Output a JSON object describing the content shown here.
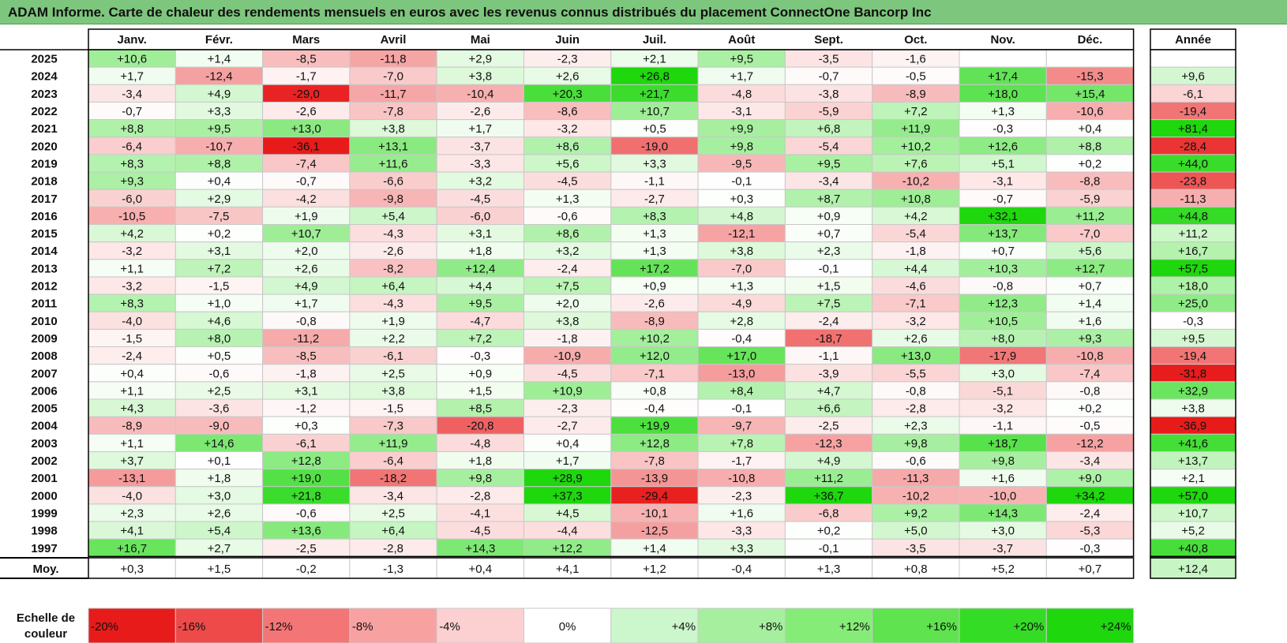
{
  "title": "ADAM Informe. Carte de chaleur des rendements mensuels en euros avec les revenus connus distribués du placement ConnectOne Bancorp Inc",
  "chart_data": {
    "type": "heatmap",
    "months": [
      "Janv.",
      "Févr.",
      "Mars",
      "Avril",
      "Mai",
      "Juin",
      "Juil.",
      "Août",
      "Sept.",
      "Oct.",
      "Nov.",
      "Déc."
    ],
    "year_column_label": "Année",
    "years": [
      "2025",
      "2024",
      "2023",
      "2022",
      "2021",
      "2020",
      "2019",
      "2018",
      "2017",
      "2016",
      "2015",
      "2014",
      "2013",
      "2012",
      "2011",
      "2010",
      "2009",
      "2008",
      "2007",
      "2006",
      "2005",
      "2004",
      "2003",
      "2002",
      "2001",
      "2000",
      "1999",
      "1998",
      "1997"
    ],
    "values": [
      [
        "+10,6",
        "+1,4",
        "-8,5",
        "-11,8",
        "+2,9",
        "-2,3",
        "+2,1",
        "+9,5",
        "-3,5",
        "-1,6",
        "",
        ""
      ],
      [
        "+1,7",
        "-12,4",
        "-1,7",
        "-7,0",
        "+3,8",
        "+2,6",
        "+26,8",
        "+1,7",
        "-0,7",
        "-0,5",
        "+17,4",
        "-15,3"
      ],
      [
        "-3,4",
        "+4,9",
        "-29,0",
        "-11,7",
        "-10,4",
        "+20,3",
        "+21,7",
        "-4,8",
        "-3,8",
        "-8,9",
        "+18,0",
        "+15,4"
      ],
      [
        "-0,7",
        "+3,3",
        "-2,6",
        "-7,8",
        "-2,6",
        "-8,6",
        "+10,7",
        "-3,1",
        "-5,9",
        "+7,2",
        "+1,3",
        "-10,6"
      ],
      [
        "+8,8",
        "+9,5",
        "+13,0",
        "+3,8",
        "+1,7",
        "-3,2",
        "+0,5",
        "+9,9",
        "+6,8",
        "+11,9",
        "-0,3",
        "+0,4"
      ],
      [
        "-6,4",
        "-10,7",
        "-36,1",
        "+13,1",
        "-3,7",
        "+8,6",
        "-19,0",
        "+9,8",
        "-5,4",
        "+10,2",
        "+12,6",
        "+8,8"
      ],
      [
        "+8,3",
        "+8,8",
        "-7,4",
        "+11,6",
        "-3,3",
        "+5,6",
        "+3,3",
        "-9,5",
        "+9,5",
        "+7,6",
        "+5,1",
        "+0,2"
      ],
      [
        "+9,3",
        "+0,4",
        "-0,7",
        "-6,6",
        "+3,2",
        "-4,5",
        "-1,1",
        "-0,1",
        "-3,4",
        "-10,2",
        "-3,1",
        "-8,8"
      ],
      [
        "-6,0",
        "+2,9",
        "-4,2",
        "-9,8",
        "-4,5",
        "+1,3",
        "-2,7",
        "+0,3",
        "+8,7",
        "+10,8",
        "-0,7",
        "-5,9"
      ],
      [
        "-10,5",
        "-7,5",
        "+1,9",
        "+5,4",
        "-6,0",
        "-0,6",
        "+8,3",
        "+4,8",
        "+0,9",
        "+4,2",
        "+32,1",
        "+11,2"
      ],
      [
        "+4,2",
        "+0,2",
        "+10,7",
        "-4,3",
        "+3,1",
        "+8,6",
        "+1,3",
        "-12,1",
        "+0,7",
        "-5,4",
        "+13,7",
        "-7,0"
      ],
      [
        "-3,2",
        "+3,1",
        "+2,0",
        "-2,6",
        "+1,8",
        "+3,2",
        "+1,3",
        "+3,8",
        "+2,3",
        "-1,8",
        "+0,7",
        "+5,6"
      ],
      [
        "+1,1",
        "+7,2",
        "+2,6",
        "-8,2",
        "+12,4",
        "-2,4",
        "+17,2",
        "-7,0",
        "-0,1",
        "+4,4",
        "+10,3",
        "+12,7"
      ],
      [
        "-3,2",
        "-1,5",
        "+4,9",
        "+6,4",
        "+4,4",
        "+7,5",
        "+0,9",
        "+1,3",
        "+1,5",
        "-4,6",
        "-0,8",
        "+0,7"
      ],
      [
        "+8,3",
        "+1,0",
        "+1,7",
        "-4,3",
        "+9,5",
        "+2,0",
        "-2,6",
        "-4,9",
        "+7,5",
        "-7,1",
        "+12,3",
        "+1,4"
      ],
      [
        "-4,0",
        "+4,6",
        "-0,8",
        "+1,9",
        "-4,7",
        "+3,8",
        "-8,9",
        "+2,8",
        "-2,4",
        "-3,2",
        "+10,5",
        "+1,6"
      ],
      [
        "-1,5",
        "+8,0",
        "-11,2",
        "+2,2",
        "+7,2",
        "-1,8",
        "+10,2",
        "-0,4",
        "-18,7",
        "+2,6",
        "+8,0",
        "+9,3"
      ],
      [
        "-2,4",
        "+0,5",
        "-8,5",
        "-6,1",
        "-0,3",
        "-10,9",
        "+12,0",
        "+17,0",
        "-1,1",
        "+13,0",
        "-17,9",
        "-10,8"
      ],
      [
        "+0,4",
        "-0,6",
        "-1,8",
        "+2,5",
        "+0,9",
        "-4,5",
        "-7,1",
        "-13,0",
        "-3,9",
        "-5,5",
        "+3,0",
        "-7,4"
      ],
      [
        "+1,1",
        "+2,5",
        "+3,1",
        "+3,8",
        "+1,5",
        "+10,9",
        "+0,8",
        "+8,4",
        "+4,7",
        "-0,8",
        "-5,1",
        "-0,8"
      ],
      [
        "+4,3",
        "-3,6",
        "-1,2",
        "-1,5",
        "+8,5",
        "-2,3",
        "-0,4",
        "-0,1",
        "+6,6",
        "-2,8",
        "-3,2",
        "+0,2"
      ],
      [
        "-8,9",
        "-9,0",
        "+0,3",
        "-7,3",
        "-20,8",
        "-2,7",
        "+19,9",
        "-9,7",
        "-2,5",
        "+2,3",
        "-1,1",
        "-0,5"
      ],
      [
        "+1,1",
        "+14,6",
        "-6,1",
        "+11,9",
        "-4,8",
        "+0,4",
        "+12,8",
        "+7,8",
        "-12,3",
        "+9,8",
        "+18,7",
        "-12,2"
      ],
      [
        "+3,7",
        "+0,1",
        "+12,8",
        "-6,4",
        "+1,8",
        "+1,7",
        "-7,8",
        "-1,7",
        "+4,9",
        "-0,6",
        "+9,8",
        "-3,4"
      ],
      [
        "-13,1",
        "+1,8",
        "+19,0",
        "-18,2",
        "+9,8",
        "+28,9",
        "-13,9",
        "-10,8",
        "+11,2",
        "-11,3",
        "+1,6",
        "+9,0"
      ],
      [
        "-4,0",
        "+3,0",
        "+21,8",
        "-3,4",
        "-2,8",
        "+37,3",
        "-29,4",
        "-2,3",
        "+36,7",
        "-10,2",
        "-10,0",
        "+34,2"
      ],
      [
        "+2,3",
        "+2,6",
        "-0,6",
        "+2,5",
        "-4,1",
        "+4,5",
        "-10,1",
        "+1,6",
        "-6,8",
        "+9,2",
        "+14,3",
        "-2,4"
      ],
      [
        "+4,1",
        "+5,4",
        "+13,6",
        "+6,4",
        "-4,5",
        "-4,4",
        "-12,5",
        "-3,3",
        "+0,2",
        "+5,0",
        "+3,0",
        "-5,3"
      ],
      [
        "+16,7",
        "+2,7",
        "-2,5",
        "-2,8",
        "+14,3",
        "+12,2",
        "+1,4",
        "+3,3",
        "-0,1",
        "-3,5",
        "-3,7",
        "-0,3"
      ]
    ],
    "annual": [
      "",
      "+9,6",
      "-6,1",
      "-19,4",
      "+81,4",
      "-28,4",
      "+44,0",
      "-23,8",
      "-11,3",
      "+44,8",
      "+11,2",
      "+16,7",
      "+57,5",
      "+18,0",
      "+25,0",
      "-0,3",
      "+9,5",
      "-19,4",
      "-31,8",
      "+32,9",
      "+3,8",
      "-36,9",
      "+41,6",
      "+13,7",
      "+2,1",
      "+57,0",
      "+10,7",
      "+5,2",
      "+40,8"
    ],
    "average_label": "Moy.",
    "average_values": [
      "+0,3",
      "+1,5",
      "-0,2",
      "-1,3",
      "+0,4",
      "+4,1",
      "+1,2",
      "-0,4",
      "+1,3",
      "+0,8",
      "+5,2",
      "+0,7"
    ],
    "average_annual": "+12,4",
    "scale_label_lines": [
      "Echelle de",
      "couleur"
    ],
    "scale": [
      {
        "label": "-20%",
        "value": -20,
        "color": "#e81b1b"
      },
      {
        "label": "-16%",
        "value": -16,
        "color": "#ee4a4a"
      },
      {
        "label": "-12%",
        "value": -12,
        "color": "#f47575"
      },
      {
        "label": "-8%",
        "value": -8,
        "color": "#f8a1a1"
      },
      {
        "label": "-4%",
        "value": -4,
        "color": "#fcd0d0"
      },
      {
        "label": "0%",
        "value": 0,
        "color": "#ffffff"
      },
      {
        "label": "+4%",
        "value": 4,
        "color": "#ccf6cc"
      },
      {
        "label": "+8%",
        "value": 8,
        "color": "#a6ef9f"
      },
      {
        "label": "+12%",
        "value": 12,
        "color": "#86ec78"
      },
      {
        "label": "+16%",
        "value": 16,
        "color": "#5fe34f"
      },
      {
        "label": "+20%",
        "value": 20,
        "color": "#35dc25"
      },
      {
        "label": "+24%",
        "value": 24,
        "color": "#1ed70d"
      }
    ]
  }
}
